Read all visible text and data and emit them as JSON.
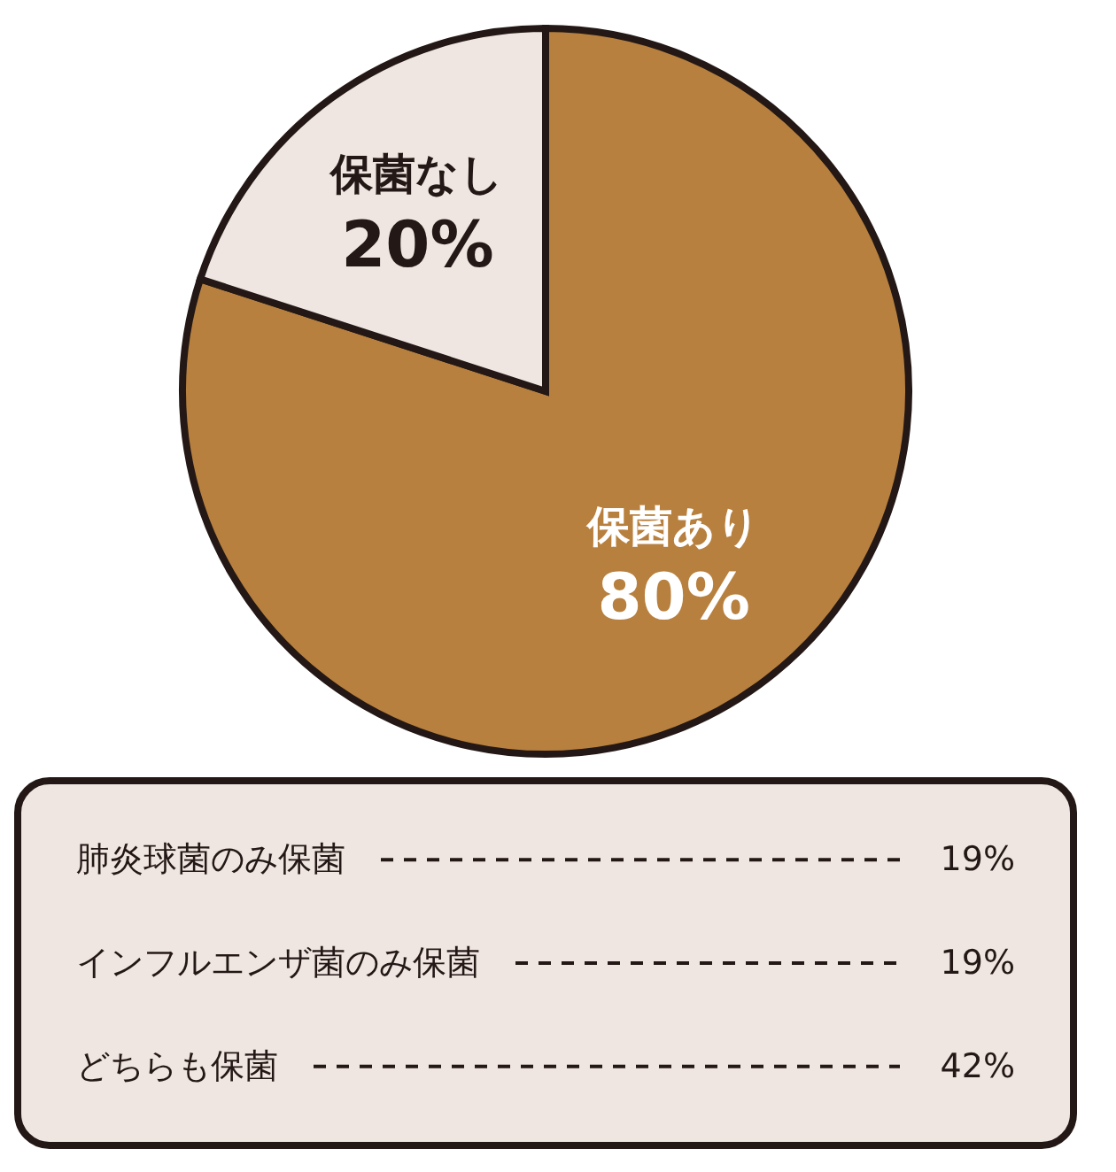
{
  "chart_data": [
    {
      "type": "pie",
      "categories": [
        "保菌あり",
        "保菌なし"
      ],
      "values": [
        80,
        20
      ],
      "value_labels": [
        "80%",
        "20%"
      ],
      "colors": [
        "#b8803e",
        "#f0e6e1"
      ],
      "legend": false
    },
    {
      "type": "other",
      "categories": [
        "肺炎球菌のみ保菌",
        "インフルエンザ菌のみ保菌",
        "どちらも保菌"
      ],
      "value_labels": [
        "19%",
        "19%",
        "42%"
      ]
    }
  ]
}
